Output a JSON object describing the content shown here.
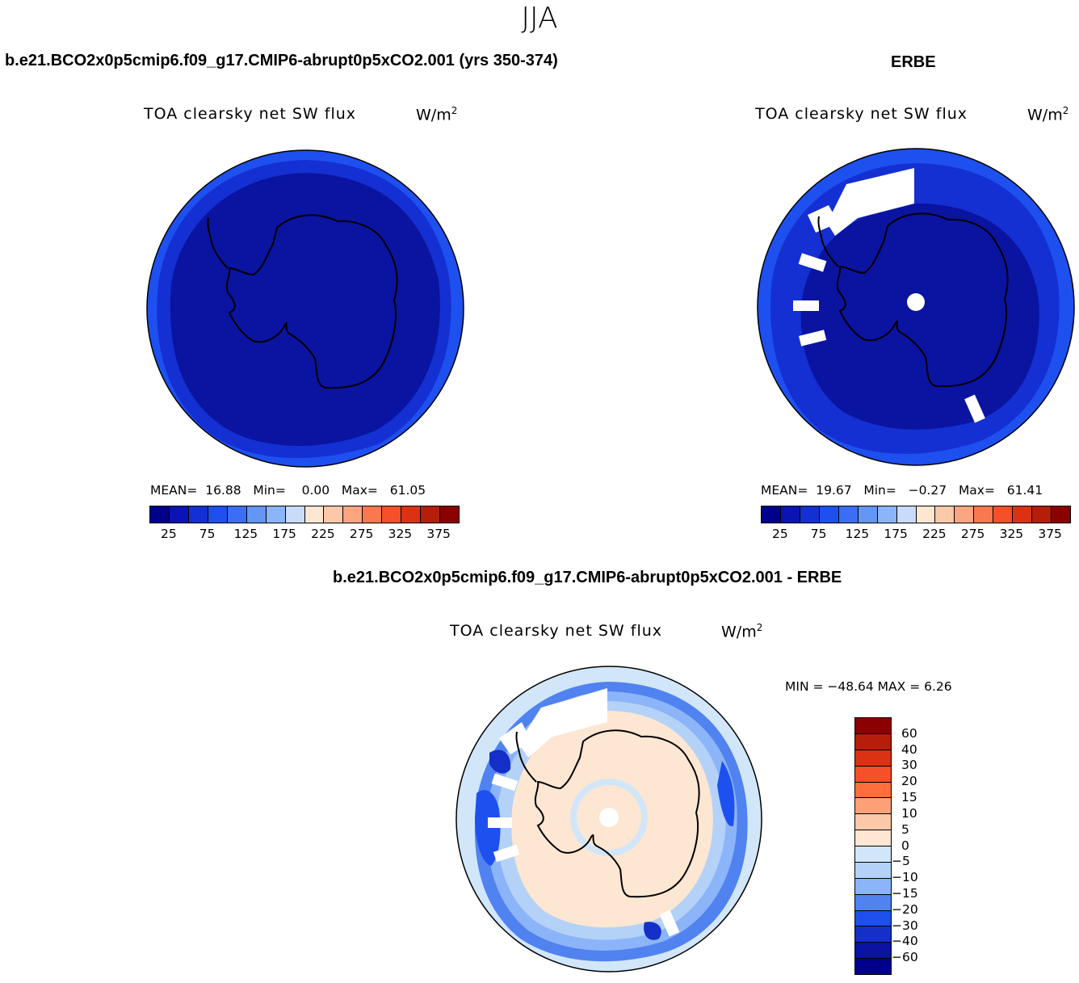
{
  "season": "JJA",
  "panels": {
    "model": {
      "title": "b.e21.BCO2x0p5cmip6.f09_g17.CMIP6-abrupt0p5xCO2.001 (yrs 350-374)",
      "variable": "TOA clearsky net SW flux",
      "units_base": "W/m",
      "units_exp": "2",
      "mean_label": "MEAN=",
      "mean": "16.88",
      "min_label": "Min=",
      "min": "0.00",
      "max_label": "Max=",
      "max": "61.05"
    },
    "obs": {
      "title": "ERBE",
      "variable": "TOA clearsky net SW flux",
      "units_base": "W/m",
      "units_exp": "2",
      "mean_label": "MEAN=",
      "mean": "19.67",
      "min_label": "Min=",
      "min": "−0.27",
      "max_label": "Max=",
      "max": "61.41"
    },
    "diff": {
      "title": "b.e21.BCO2x0p5cmip6.f09_g17.CMIP6-abrupt0p5xCO2.001 - ERBE",
      "variable": "TOA clearsky net SW flux",
      "units_base": "W/m",
      "units_exp": "2",
      "minmax_text": "MIN = −48.64 MAX =    6.26"
    }
  },
  "colorbars": {
    "abs": {
      "colors": [
        "#00008b",
        "#0a14b4",
        "#1430d2",
        "#1e50f0",
        "#3c6ef5",
        "#6496f5",
        "#8cb4f8",
        "#c8dcfa",
        "#fde6d2",
        "#fcc8aa",
        "#fba582",
        "#fa7850",
        "#f5502a",
        "#dc3214",
        "#b41e0a",
        "#8b0000"
      ],
      "ticks": [
        "25",
        "75",
        "125",
        "175",
        "225",
        "275",
        "325",
        "375"
      ]
    },
    "diff": {
      "colors": [
        "#8b0000",
        "#b41e0a",
        "#dc3214",
        "#f5502a",
        "#ff6e3c",
        "#fca078",
        "#fcc8aa",
        "#fde6d2",
        "#d2e6fa",
        "#b4d2f8",
        "#8cb4f8",
        "#5082f0",
        "#1e50f0",
        "#1430c8",
        "#0a14a0",
        "#00008b"
      ],
      "ticks": [
        "60",
        "40",
        "30",
        "20",
        "15",
        "10",
        "5",
        "0",
        "−5",
        "−10",
        "−15",
        "−20",
        "−30",
        "−40",
        "−60"
      ]
    }
  }
}
